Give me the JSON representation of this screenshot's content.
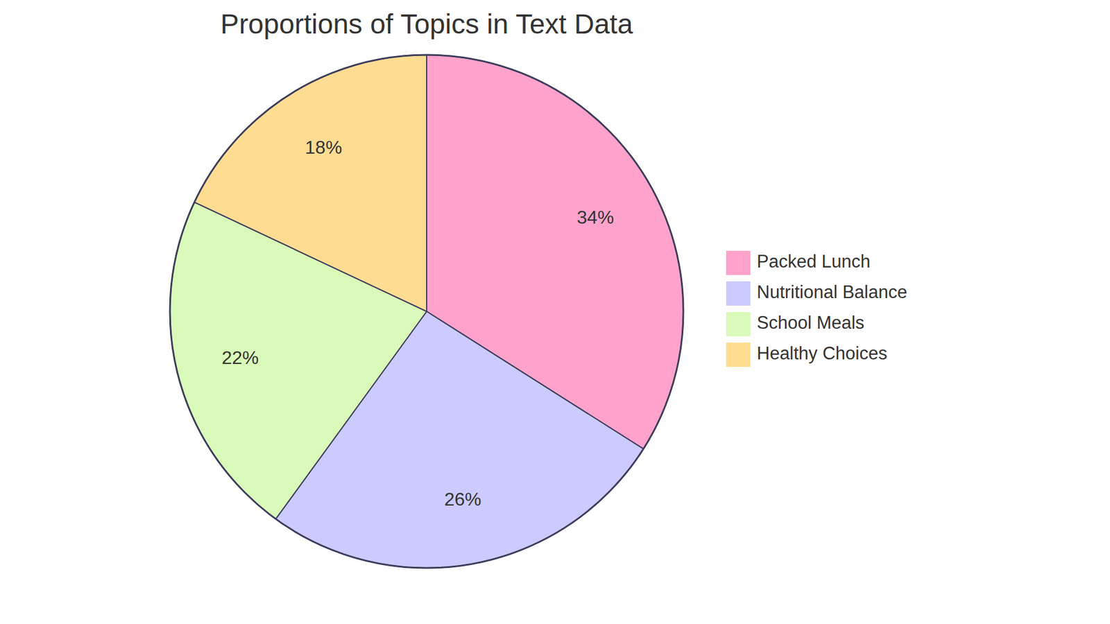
{
  "chart_data": {
    "type": "pie",
    "title": "Proportions of Topics in Text Data",
    "categories": [
      "Packed Lunch",
      "Nutritional Balance",
      "School Meals",
      "Healthy Choices"
    ],
    "values": [
      34,
      26,
      22,
      18
    ],
    "value_labels": [
      "34%",
      "26%",
      "22%",
      "18%"
    ],
    "colors": [
      "#ffa3cc",
      "#cbcbff",
      "#dafab9",
      "#fedd93"
    ],
    "data_labels": true,
    "legend": "right"
  }
}
